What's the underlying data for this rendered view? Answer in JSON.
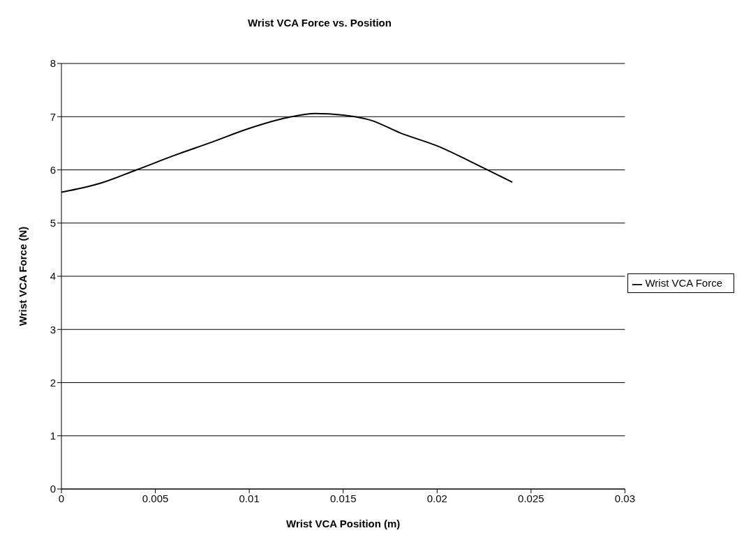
{
  "chart_data": {
    "type": "line",
    "title": "Wrist VCA Force vs. Position",
    "xlabel": "Wrist VCA Position (m)",
    "ylabel": "Wrist VCA Force (N)",
    "x": [
      0,
      0.002,
      0.004,
      0.006,
      0.008,
      0.01,
      0.012,
      0.0135,
      0.015,
      0.0165,
      0.018,
      0.02,
      0.0225,
      0.024
    ],
    "series": [
      {
        "name": "Wrist VCA Force",
        "color": "#000000",
        "values": [
          5.58,
          5.74,
          6.0,
          6.27,
          6.52,
          6.78,
          6.98,
          7.06,
          7.03,
          6.93,
          6.7,
          6.45,
          6.03,
          5.77
        ]
      }
    ],
    "xlim": [
      0,
      0.03
    ],
    "xticks": [
      0,
      0.005,
      0.01,
      0.015,
      0.02,
      0.025,
      0.03
    ],
    "ylim": [
      0,
      8
    ],
    "yticks": [
      0,
      1,
      2,
      3,
      4,
      5,
      6,
      7,
      8
    ],
    "grid": "y",
    "legend": "right",
    "marker": "none",
    "line_style": "solid"
  }
}
